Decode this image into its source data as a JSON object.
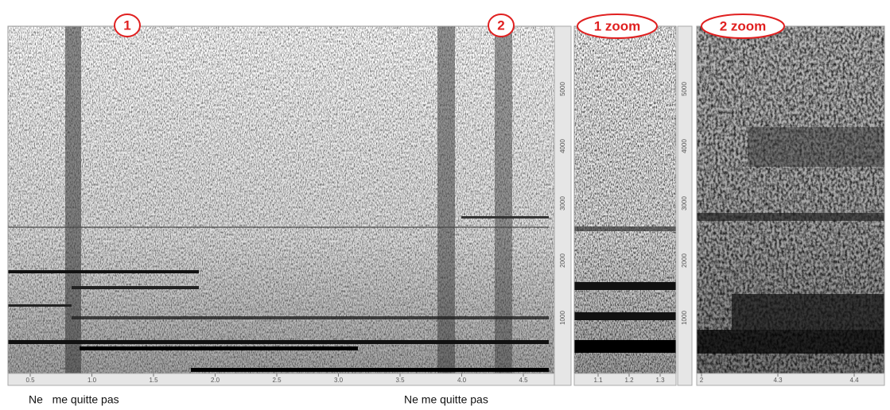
{
  "markers": [
    "1",
    "2",
    "1 zoom",
    "2 zoom"
  ],
  "captions": [
    "Ne   me quitte pas",
    "Ne me quitte pas"
  ],
  "main_panel": {
    "x_ticks": [
      "0.5",
      "1.0",
      "1.5",
      "2.0",
      "2.5",
      "3.0",
      "3.5",
      "4.0",
      "4.5"
    ],
    "y_ticks": [
      "1000",
      "2000",
      "3000",
      "4000",
      "5000"
    ]
  },
  "zoom1_panel": {
    "x_ticks": [
      "1.1",
      "1.2",
      "1.3"
    ],
    "y_ticks": [
      "1000",
      "2000",
      "3000",
      "4000",
      "5000"
    ]
  },
  "zoom2_panel": {
    "x_ticks": [
      "2",
      "4.3",
      "4.4"
    ]
  }
}
